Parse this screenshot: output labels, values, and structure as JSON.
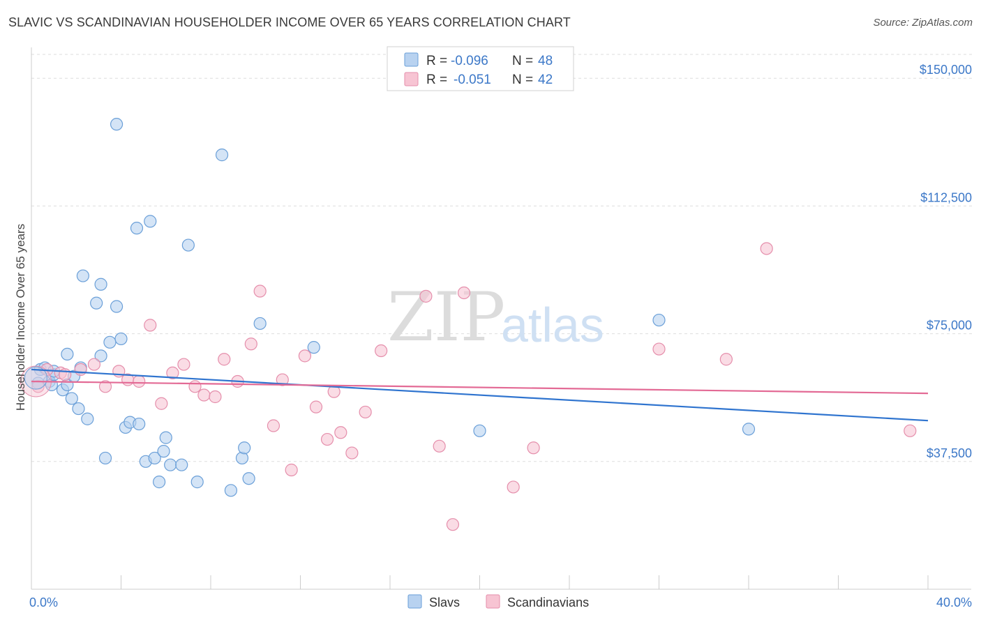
{
  "title": "SLAVIC VS SCANDINAVIAN HOUSEHOLDER INCOME OVER 65 YEARS CORRELATION CHART",
  "source": "Source: ZipAtlas.com",
  "watermark": {
    "zip": "ZIP",
    "atlas": "atlas"
  },
  "colors": {
    "slavs_fill": "#b8d2f0",
    "slavs_stroke": "#6a9fd8",
    "slavs_line": "#2f74cf",
    "scand_fill": "#f7c4d3",
    "scand_stroke": "#e58eab",
    "scand_line": "#e36a95",
    "axis_label": "#3c78c8",
    "grid": "#dddddd"
  },
  "legend": {
    "rows": [
      {
        "r_label": "R =",
        "r_value": "-0.096",
        "n_label": "N =",
        "n_value": "48"
      },
      {
        "r_label": "R =",
        "r_value": "-0.051",
        "n_label": "N =",
        "n_value": "42"
      }
    ]
  },
  "bottom_legend": [
    "Slavs",
    "Scandinavians"
  ],
  "chart_data": {
    "type": "scatter",
    "title": "SLAVIC VS SCANDINAVIAN HOUSEHOLDER INCOME OVER 65 YEARS CORRELATION CHART",
    "xlabel": "",
    "ylabel": "Householder Income Over 65 years",
    "xlim": [
      0,
      40
    ],
    "ylim": [
      0,
      157000
    ],
    "x_tick_labels": [
      "0.0%",
      "40.0%"
    ],
    "y_ticks": [
      37500,
      75000,
      112500,
      150000
    ],
    "y_tick_labels": [
      "$37,500",
      "$75,000",
      "$112,500",
      "$150,000"
    ],
    "grid": true,
    "legend_position": "top-center",
    "series": [
      {
        "name": "Slavs",
        "points": [
          [
            0.3,
            60500
          ],
          [
            0.4,
            64500
          ],
          [
            0.6,
            65000
          ],
          [
            0.8,
            61000
          ],
          [
            0.9,
            60000
          ],
          [
            1.0,
            63000
          ],
          [
            1.0,
            64000
          ],
          [
            1.4,
            58500
          ],
          [
            1.6,
            60000
          ],
          [
            1.6,
            69000
          ],
          [
            1.8,
            56000
          ],
          [
            1.9,
            62500
          ],
          [
            2.1,
            53000
          ],
          [
            2.2,
            65000
          ],
          [
            2.3,
            92000
          ],
          [
            2.5,
            50000
          ],
          [
            2.9,
            84000
          ],
          [
            3.1,
            68500
          ],
          [
            3.1,
            89500
          ],
          [
            3.3,
            38500
          ],
          [
            3.5,
            72500
          ],
          [
            3.8,
            136500
          ],
          [
            3.8,
            83000
          ],
          [
            4.0,
            73500
          ],
          [
            4.2,
            47500
          ],
          [
            4.4,
            49000
          ],
          [
            4.7,
            106000
          ],
          [
            4.8,
            48500
          ],
          [
            5.1,
            37500
          ],
          [
            5.3,
            108000
          ],
          [
            5.5,
            38500
          ],
          [
            5.7,
            31500
          ],
          [
            5.9,
            40500
          ],
          [
            6.0,
            44500
          ],
          [
            6.2,
            36500
          ],
          [
            6.7,
            36500
          ],
          [
            7.0,
            101000
          ],
          [
            7.4,
            31500
          ],
          [
            8.5,
            127500
          ],
          [
            8.9,
            29000
          ],
          [
            9.4,
            38500
          ],
          [
            9.5,
            41500
          ],
          [
            9.7,
            32500
          ],
          [
            10.2,
            78000
          ],
          [
            12.6,
            71000
          ],
          [
            20.0,
            46500
          ],
          [
            28.0,
            79000
          ],
          [
            32.0,
            47000
          ]
        ]
      },
      {
        "name": "Scandinavians",
        "points": [
          [
            0.3,
            59500
          ],
          [
            0.7,
            64500
          ],
          [
            1.3,
            63500
          ],
          [
            1.5,
            63000
          ],
          [
            2.2,
            64500
          ],
          [
            2.8,
            66000
          ],
          [
            3.3,
            59500
          ],
          [
            3.9,
            64000
          ],
          [
            4.3,
            61500
          ],
          [
            4.8,
            61000
          ],
          [
            5.3,
            77500
          ],
          [
            5.8,
            54500
          ],
          [
            6.3,
            63500
          ],
          [
            6.8,
            66000
          ],
          [
            7.3,
            59500
          ],
          [
            7.7,
            57000
          ],
          [
            8.2,
            56500
          ],
          [
            8.6,
            67500
          ],
          [
            9.2,
            61000
          ],
          [
            9.8,
            72000
          ],
          [
            10.2,
            87500
          ],
          [
            10.8,
            48000
          ],
          [
            11.2,
            61500
          ],
          [
            11.6,
            35000
          ],
          [
            12.2,
            68500
          ],
          [
            12.7,
            53500
          ],
          [
            13.2,
            44000
          ],
          [
            13.5,
            58000
          ],
          [
            13.8,
            46000
          ],
          [
            14.3,
            40000
          ],
          [
            14.9,
            52000
          ],
          [
            15.6,
            70000
          ],
          [
            17.6,
            86000
          ],
          [
            18.2,
            42000
          ],
          [
            18.8,
            19000
          ],
          [
            19.3,
            87000
          ],
          [
            21.5,
            30000
          ],
          [
            22.4,
            41500
          ],
          [
            28.0,
            70500
          ],
          [
            31.0,
            67500
          ],
          [
            32.8,
            100000
          ],
          [
            39.2,
            46500
          ]
        ]
      }
    ],
    "trend_lines": [
      {
        "name": "Slavs",
        "start": [
          0,
          64500
        ],
        "end": [
          40,
          49500
        ]
      },
      {
        "name": "Scandinavians",
        "start": [
          0,
          61000
        ],
        "end": [
          40,
          57500
        ]
      }
    ]
  }
}
